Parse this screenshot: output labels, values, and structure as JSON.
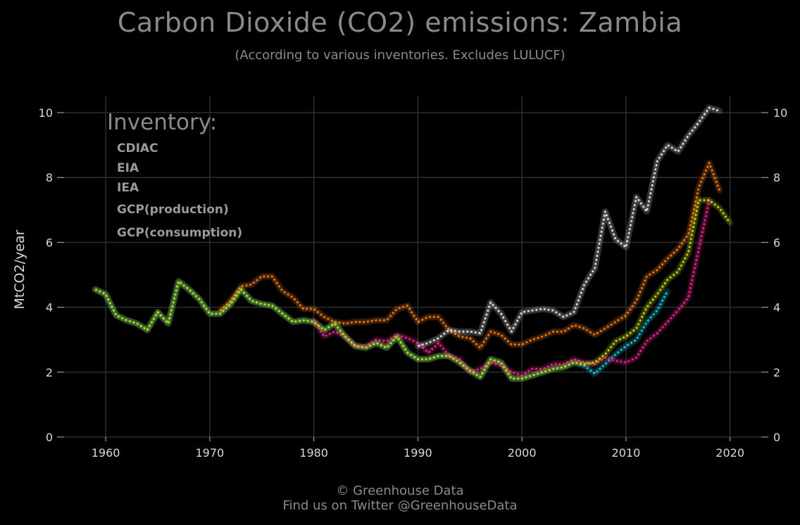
{
  "header": {
    "title": "Carbon Dioxide (CO2) emissions: Zambia",
    "subtitle": "(According to various inventories. Excludes LULUCF)"
  },
  "footer": {
    "line1": "© Greenhouse Data",
    "line2": "Find us on Twitter @GreenhouseData"
  },
  "chart_data": {
    "type": "line",
    "title": "Carbon Dioxide (CO2) emissions: Zambia",
    "subtitle": "(According to various inventories. Excludes LULUCF)",
    "ylabel": "MtCO2/year",
    "xlabel": "",
    "xlim": [
      1956,
      2023
    ],
    "ylim": [
      0,
      10.5
    ],
    "x_ticks": [
      1960,
      1970,
      1980,
      1990,
      2000,
      2010,
      2020
    ],
    "y_ticks": [
      0,
      2,
      4,
      6,
      8,
      10
    ],
    "grid": true,
    "secondary_y_axis": true,
    "legend": {
      "title": "Inventory:",
      "position": "top-left"
    },
    "background": "#000000",
    "grid_color": "#2e2e2e",
    "series": [
      {
        "name": "CDIAC",
        "color": "#1fc8d8",
        "x": [
          1959,
          1960,
          1961,
          1962,
          1963,
          1964,
          1965,
          1966,
          1967,
          1968,
          1969,
          1970,
          1971,
          1972,
          1973,
          1974,
          1975,
          1976,
          1977,
          1978,
          1979,
          1980,
          1981,
          1982,
          1983,
          1984,
          1985,
          1986,
          1987,
          1988,
          1989,
          1990,
          1991,
          1992,
          1993,
          1994,
          1995,
          1996,
          1997,
          1998,
          1999,
          2000,
          2001,
          2002,
          2003,
          2004,
          2005,
          2006,
          2007,
          2008,
          2009,
          2010,
          2011,
          2012,
          2013,
          2014
        ],
        "y": [
          4.55,
          4.4,
          3.75,
          3.6,
          3.5,
          3.3,
          3.85,
          3.5,
          4.8,
          4.55,
          4.25,
          3.8,
          3.8,
          4.1,
          4.55,
          4.2,
          4.1,
          4.05,
          3.8,
          3.55,
          3.6,
          3.55,
          3.3,
          3.5,
          3.1,
          2.8,
          2.75,
          2.9,
          2.75,
          3.1,
          2.6,
          2.4,
          2.4,
          2.5,
          2.5,
          2.3,
          2.05,
          1.85,
          2.4,
          2.3,
          1.8,
          1.8,
          1.9,
          2.0,
          2.1,
          2.15,
          2.3,
          2.2,
          1.95,
          2.25,
          2.55,
          2.8,
          3.0,
          3.55,
          3.9,
          4.5
        ]
      },
      {
        "name": "EIA",
        "color": "#e8288c",
        "x": [
          1980,
          1981,
          1982,
          1983,
          1984,
          1985,
          1986,
          1987,
          1988,
          1989,
          1990,
          1991,
          1992,
          1993,
          1994,
          1995,
          1996,
          1997,
          1998,
          1999,
          2000,
          2001,
          2002,
          2003,
          2004,
          2005,
          2006,
          2007,
          2008,
          2009,
          2010,
          2011,
          2012,
          2013,
          2014,
          2015,
          2016,
          2017,
          2018
        ],
        "y": [
          3.6,
          3.1,
          3.25,
          3.1,
          2.8,
          2.8,
          3.0,
          2.95,
          3.15,
          3.05,
          2.9,
          2.6,
          2.9,
          2.5,
          2.4,
          2.0,
          2.1,
          2.3,
          2.2,
          2.0,
          1.9,
          2.1,
          2.1,
          2.25,
          2.25,
          2.4,
          2.3,
          2.25,
          2.45,
          2.35,
          2.3,
          2.45,
          2.95,
          3.2,
          3.55,
          3.9,
          4.3,
          5.8,
          7.3
        ]
      },
      {
        "name": "IEA",
        "color": "#f07b1e",
        "x": [
          1971,
          1972,
          1973,
          1974,
          1975,
          1976,
          1977,
          1978,
          1979,
          1980,
          1981,
          1982,
          1983,
          1984,
          1985,
          1986,
          1987,
          1988,
          1989,
          1990,
          1991,
          1992,
          1993,
          1994,
          1995,
          1996,
          1997,
          1998,
          1999,
          2000,
          2001,
          2002,
          2003,
          2004,
          2005,
          2006,
          2007,
          2008,
          2009,
          2010,
          2011,
          2012,
          2013,
          2014,
          2015,
          2016,
          2017,
          2018,
          2019
        ],
        "y": [
          3.9,
          4.2,
          4.65,
          4.7,
          4.95,
          4.95,
          4.5,
          4.3,
          3.95,
          3.95,
          3.7,
          3.55,
          3.5,
          3.55,
          3.55,
          3.6,
          3.6,
          3.95,
          4.05,
          3.55,
          3.7,
          3.7,
          3.3,
          3.1,
          3.05,
          2.75,
          3.25,
          3.15,
          2.85,
          2.85,
          3.0,
          3.1,
          3.25,
          3.25,
          3.45,
          3.35,
          3.15,
          3.35,
          3.55,
          3.75,
          4.2,
          4.95,
          5.15,
          5.5,
          5.8,
          6.25,
          7.7,
          8.45,
          7.6
        ]
      },
      {
        "name": "GCP(production)",
        "color": "#c6dd12",
        "x": [
          1959,
          1960,
          1961,
          1962,
          1963,
          1964,
          1965,
          1966,
          1967,
          1968,
          1969,
          1970,
          1971,
          1972,
          1973,
          1974,
          1975,
          1976,
          1977,
          1978,
          1979,
          1980,
          1981,
          1982,
          1983,
          1984,
          1985,
          1986,
          1987,
          1988,
          1989,
          1990,
          1991,
          1992,
          1993,
          1994,
          1995,
          1996,
          1997,
          1998,
          1999,
          2000,
          2001,
          2002,
          2003,
          2004,
          2005,
          2006,
          2007,
          2008,
          2009,
          2010,
          2011,
          2012,
          2013,
          2014,
          2015,
          2016,
          2017,
          2018,
          2019,
          2020
        ],
        "y": [
          4.55,
          4.4,
          3.75,
          3.6,
          3.5,
          3.3,
          3.85,
          3.5,
          4.8,
          4.55,
          4.25,
          3.8,
          3.8,
          4.1,
          4.55,
          4.2,
          4.1,
          4.05,
          3.8,
          3.55,
          3.6,
          3.55,
          3.3,
          3.5,
          3.1,
          2.8,
          2.75,
          2.9,
          2.75,
          3.1,
          2.6,
          2.4,
          2.4,
          2.5,
          2.5,
          2.3,
          2.05,
          1.85,
          2.4,
          2.3,
          1.8,
          1.8,
          1.9,
          2.0,
          2.1,
          2.15,
          2.3,
          2.25,
          2.3,
          2.55,
          2.95,
          3.1,
          3.35,
          4.0,
          4.4,
          4.85,
          5.1,
          5.7,
          7.3,
          7.3,
          7.05,
          6.6
        ]
      },
      {
        "name": "GCP(consumption)",
        "color": "#e2e2e2",
        "x": [
          1990,
          1991,
          1992,
          1993,
          1994,
          1995,
          1996,
          1997,
          1998,
          1999,
          2000,
          2001,
          2002,
          2003,
          2004,
          2005,
          2006,
          2007,
          2008,
          2009,
          2010,
          2011,
          2012,
          2013,
          2014,
          2015,
          2016,
          2017,
          2018,
          2019
        ],
        "y": [
          2.8,
          2.9,
          3.05,
          3.3,
          3.25,
          3.25,
          3.2,
          4.15,
          3.8,
          3.25,
          3.85,
          3.9,
          3.95,
          3.9,
          3.7,
          3.85,
          4.7,
          5.2,
          6.95,
          6.1,
          5.85,
          7.4,
          6.95,
          8.5,
          9.0,
          8.8,
          9.3,
          9.7,
          10.15,
          10.05
        ]
      }
    ]
  }
}
